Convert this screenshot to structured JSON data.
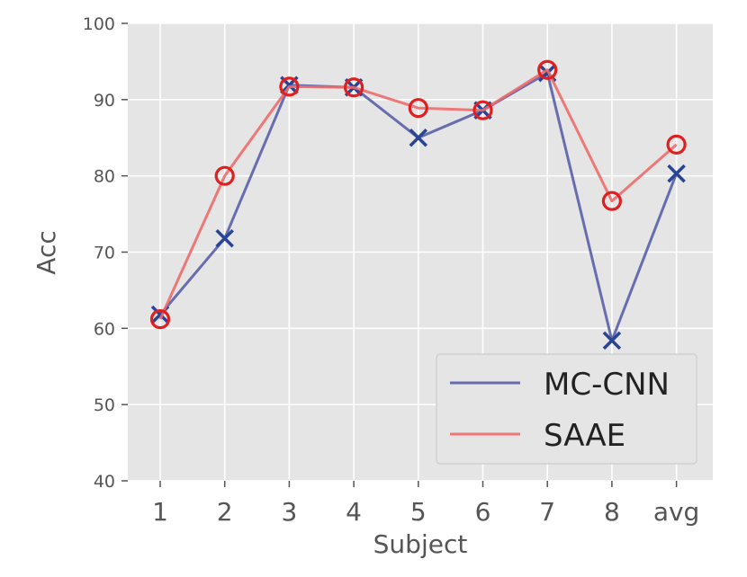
{
  "chart_data": {
    "type": "line",
    "xlabel": "Subject",
    "ylabel": "Acc",
    "categories": [
      "1",
      "2",
      "3",
      "4",
      "5",
      "6",
      "7",
      "8",
      "avg"
    ],
    "ylim": [
      40,
      100
    ],
    "yticks": [
      40,
      50,
      60,
      70,
      80,
      90,
      100
    ],
    "grid": true,
    "legend_position": "lower-right",
    "series": [
      {
        "name": "MC-CNN",
        "color": "#5a5fa8",
        "marker": "x",
        "marker_color": "#2a4494",
        "values": [
          61.8,
          71.8,
          91.9,
          91.6,
          85.0,
          88.6,
          93.5,
          58.4,
          80.3
        ]
      },
      {
        "name": "SAAE",
        "color": "#ee6a6a",
        "marker": "circle",
        "marker_color": "#e02020",
        "values": [
          61.2,
          80.0,
          91.7,
          91.6,
          88.9,
          88.6,
          93.9,
          76.7,
          84.1
        ]
      }
    ]
  }
}
